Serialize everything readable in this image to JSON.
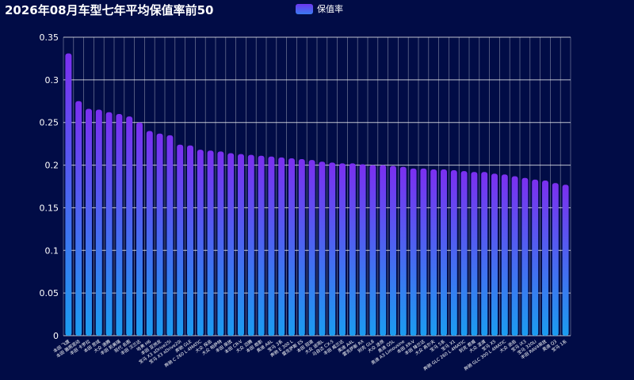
{
  "chart_data": {
    "type": "bar",
    "title": "2026年08月车型七年平均保值率前50",
    "legend": {
      "label": "保值率",
      "position": "top-center"
    },
    "colors": {
      "bar_top": "#7b2ff0",
      "bar_bottom": "#1b9cf0",
      "background": "#010c46",
      "grid": "#ffffff"
    },
    "ylim": [
      0,
      0.35
    ],
    "yticks": [
      "0",
      "0.05",
      "0.1",
      "0.15",
      "0.2",
      "0.25",
      "0.3",
      "0.35"
    ],
    "ytick_values": [
      0,
      0.05,
      0.1,
      0.15,
      0.2,
      0.25,
      0.3,
      0.35
    ],
    "grid": true,
    "categories": [
      "本田 飞度",
      "本田 雅阁混动",
      "丰田 卡罗拉",
      "本田 思域",
      "大众 速腾",
      "丰田 凯美瑞",
      "现代 名图",
      "丰田 汉兰达",
      "哈弗 H6",
      "丰田 亚洲龙",
      "宝马 X3 xDrive25i",
      "宝马 X3 xDrive20i",
      "奔驰 GLE",
      "奔驰 C 260 L 4MATIC",
      "大众 探岳",
      "大众 帕萨特",
      "丰田 荣放",
      "本田 CR-V",
      "大众 迈腾",
      "本田 皓影",
      "奥迪 A6L",
      "宝马 3系",
      "奔驰 E 300 L",
      "雷克萨斯 ES",
      "本田 冠道",
      "大众 途观L",
      "马自达 CX-5",
      "丰田 威兰达",
      "奥迪 A4L",
      "雷克萨斯 RX",
      "别克 GL8",
      "大众 途昂",
      "奥迪 Q5L",
      "奥迪 A3 Limousine",
      "本田 XR-V",
      "丰田 锋兰达",
      "大众 高尔夫",
      "宝马 5系",
      "宝马 X1",
      "奔驰 GLC 260 L 4MATIC",
      "别克 君威",
      "大众 凌渡",
      "宝马 X5",
      "奔驰 GLC 300 L 4MATIC",
      "大众 途岳",
      "宝马 iX3",
      "宝马 320Li",
      "丰田 RAV4荣放",
      "奥迪 Q3",
      "宝马 1系"
    ],
    "values": [
      0.331,
      0.275,
      0.266,
      0.265,
      0.262,
      0.26,
      0.257,
      0.25,
      0.24,
      0.237,
      0.235,
      0.224,
      0.223,
      0.218,
      0.217,
      0.216,
      0.214,
      0.213,
      0.212,
      0.211,
      0.21,
      0.209,
      0.208,
      0.207,
      0.206,
      0.204,
      0.203,
      0.202,
      0.202,
      0.201,
      0.2,
      0.2,
      0.199,
      0.198,
      0.196,
      0.196,
      0.195,
      0.195,
      0.194,
      0.193,
      0.192,
      0.192,
      0.19,
      0.189,
      0.187,
      0.185,
      0.183,
      0.182,
      0.179,
      0.177
    ]
  }
}
